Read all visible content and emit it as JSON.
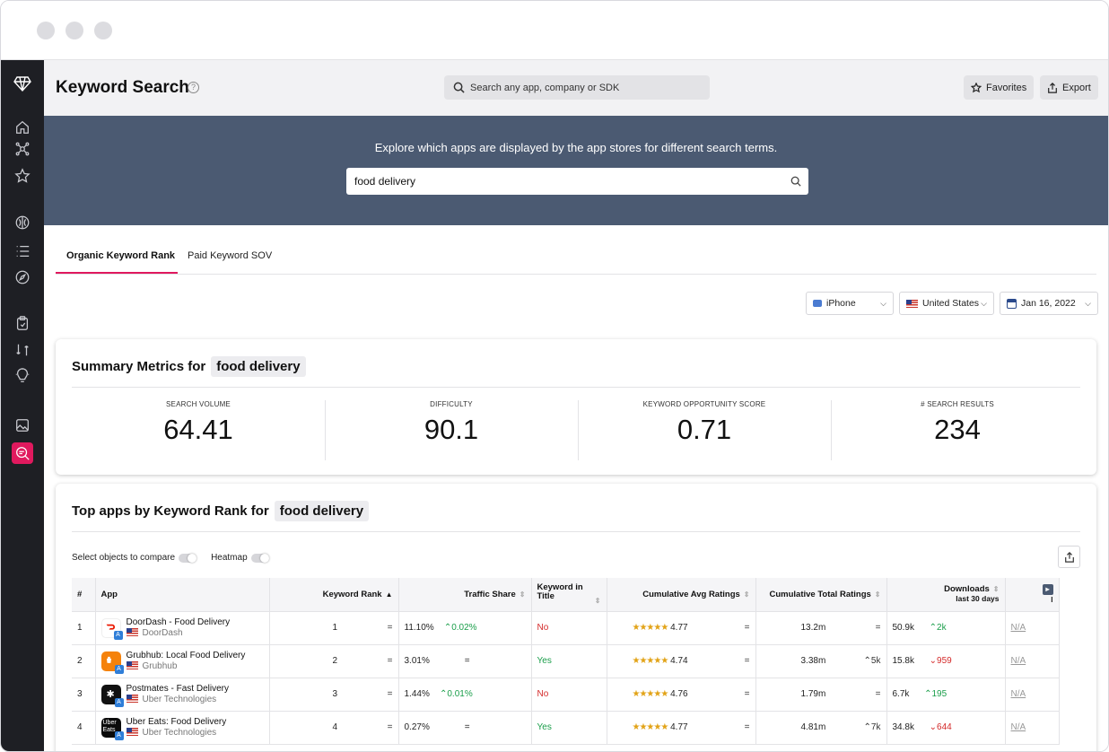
{
  "header": {
    "title": "Keyword Search",
    "search_placeholder": "Search any app, company or SDK",
    "favorites_label": "Favorites",
    "export_label": "Export"
  },
  "banner": {
    "text": "Explore which apps are displayed by the app stores for different search terms.",
    "keyword_value": "food delivery"
  },
  "tabs": [
    {
      "label": "Organic Keyword Rank",
      "active": true
    },
    {
      "label": "Paid Keyword SOV",
      "active": false
    }
  ],
  "filters": {
    "device": "iPhone",
    "country": "United States",
    "date": "Jan 16, 2022"
  },
  "summary": {
    "title": "Summary Metrics for",
    "keyword": "food delivery",
    "metrics": [
      {
        "label": "SEARCH VOLUME",
        "value": "64.41"
      },
      {
        "label": "DIFFICULTY",
        "value": "90.1"
      },
      {
        "label": "KEYWORD OPPORTUNITY SCORE",
        "value": "0.71"
      },
      {
        "label": "# SEARCH RESULTS",
        "value": "234"
      }
    ]
  },
  "top_apps": {
    "title": "Top apps by Keyword Rank for",
    "keyword": "food delivery",
    "compare_label": "Select objects to compare",
    "heatmap_label": "Heatmap",
    "columns": {
      "num": "#",
      "app": "App",
      "rank": "Keyword Rank",
      "traffic": "Traffic Share",
      "in_title": "Keyword in Title",
      "avg_ratings": "Cumulative Avg Ratings",
      "total_ratings": "Cumulative Total Ratings",
      "downloads": "Downloads",
      "downloads_sub": "last 30 days",
      "extra_sub": "l"
    },
    "rows": [
      {
        "num": "1",
        "name": "DoorDash - Food Delivery",
        "publisher": "DoorDash",
        "rank": "1",
        "rank_chg": "=",
        "traffic": "11.10%",
        "traffic_chg": "^0.02%",
        "in_title": "No",
        "stars": "★★★★★",
        "avg": "4.77",
        "avg_chg": "=",
        "total": "13.2m",
        "total_chg": "=",
        "downloads": "50.9k",
        "dl_chg": "^2k",
        "extra": "N/A"
      },
      {
        "num": "2",
        "name": "Grubhub: Local Food Delivery",
        "publisher": "Grubhub",
        "rank": "2",
        "rank_chg": "=",
        "traffic": "3.01%",
        "traffic_chg": "=",
        "in_title": "Yes",
        "stars": "★★★★★",
        "avg": "4.74",
        "avg_chg": "=",
        "total": "3.38m",
        "total_chg": "^5k",
        "downloads": "15.8k",
        "dl_chg": "v959",
        "extra": "N/A"
      },
      {
        "num": "3",
        "name": "Postmates - Fast Delivery",
        "publisher": "Uber Technologies",
        "rank": "3",
        "rank_chg": "=",
        "traffic": "1.44%",
        "traffic_chg": "^0.01%",
        "in_title": "No",
        "stars": "★★★★★",
        "avg": "4.76",
        "avg_chg": "=",
        "total": "1.79m",
        "total_chg": "=",
        "downloads": "6.7k",
        "dl_chg": "^195",
        "extra": "N/A"
      },
      {
        "num": "4",
        "name": "Uber Eats: Food Delivery",
        "publisher": "Uber Technologies",
        "rank": "4",
        "rank_chg": "=",
        "traffic": "0.27%",
        "traffic_chg": "=",
        "in_title": "Yes",
        "stars": "★★★★★",
        "avg": "4.77",
        "avg_chg": "=",
        "total": "4.81m",
        "total_chg": "^7k",
        "downloads": "34.8k",
        "dl_chg": "v644",
        "extra": "N/A"
      }
    ]
  },
  "colors": {
    "accent": "#e0195e",
    "banner": "#4b5a72",
    "sidebar": "#1e1f24",
    "up": "#1a9e4a",
    "down": "#d42a2a"
  },
  "icons": [
    "logo-icon",
    "home-icon",
    "network-icon",
    "star-icon",
    "brain-icon",
    "list-icon",
    "compass-icon",
    "clipboard-icon",
    "compare-icon",
    "bulb-icon",
    "image-icon",
    "keyword-search-icon"
  ]
}
